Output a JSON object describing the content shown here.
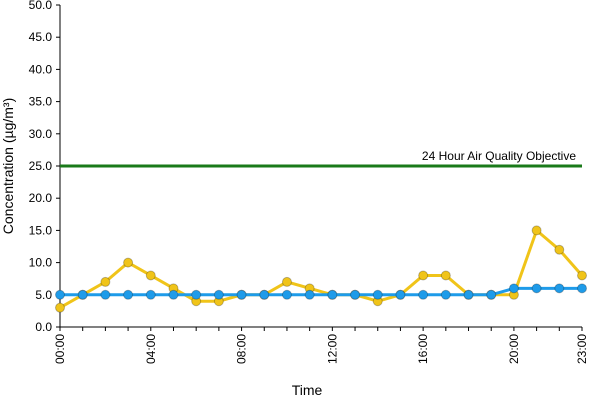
{
  "chart_data": {
    "type": "line",
    "x_label": "Time",
    "y_label": "Concentration (µg/m³)",
    "categories": [
      "00:00",
      null,
      null,
      null,
      "04:00",
      null,
      null,
      null,
      "08:00",
      null,
      null,
      null,
      "12:00",
      null,
      null,
      null,
      "16:00",
      null,
      null,
      null,
      "20:00",
      null,
      null,
      "23:00"
    ],
    "series": [
      {
        "color": "#f0c419",
        "values": [
          3,
          5,
          7,
          10,
          8,
          6,
          4,
          4,
          5,
          5,
          7,
          6,
          5,
          5,
          4,
          5,
          8,
          8,
          5,
          5,
          5,
          15,
          12,
          8
        ]
      },
      {
        "color": "#1e9be9",
        "values": [
          5,
          5,
          5,
          5,
          5,
          5,
          5,
          5,
          5,
          5,
          5,
          5,
          5,
          5,
          5,
          5,
          5,
          5,
          5,
          5,
          6,
          6,
          6,
          6
        ]
      }
    ],
    "threshold": {
      "value": 25,
      "label": "24 Hour Air Quality Objective",
      "color": "#1a7a1a"
    },
    "ylim": [
      0,
      50
    ],
    "yticks": [
      {
        "value": 0,
        "label": "0.0"
      },
      {
        "value": 5,
        "label": "5.0"
      },
      {
        "value": 10,
        "label": "10.0"
      },
      {
        "value": 15,
        "label": "15.0"
      },
      {
        "value": 20,
        "label": "20.0"
      },
      {
        "value": 25,
        "label": "25.0"
      },
      {
        "value": 30,
        "label": "30.0"
      },
      {
        "value": 35,
        "label": "35.0"
      },
      {
        "value": 40,
        "label": "40.0"
      },
      {
        "value": 45,
        "label": "45.0"
      },
      {
        "value": 50,
        "label": "50.0"
      }
    ]
  }
}
